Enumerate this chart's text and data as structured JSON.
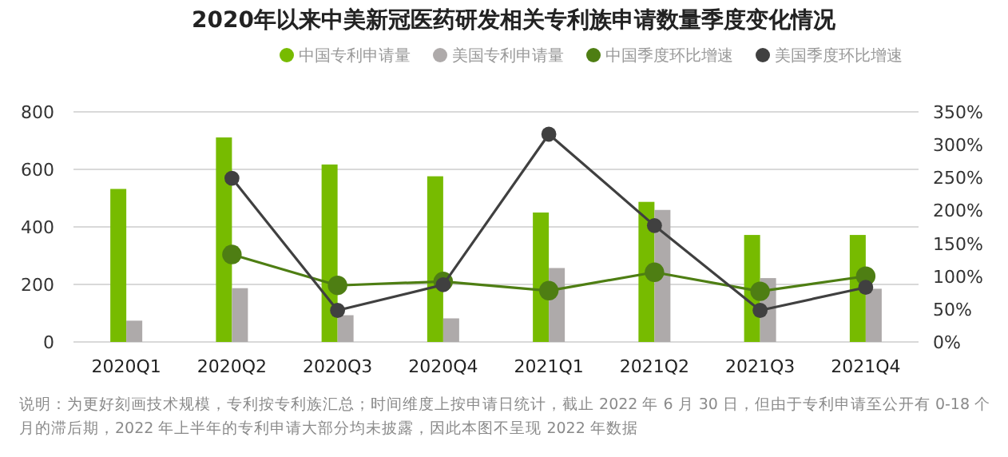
{
  "chart_data": {
    "type": "bar",
    "title": "2020年以来中美新冠医药研发相关专利族申请数量季度变化情况",
    "categories": [
      "2020Q1",
      "2020Q2",
      "2020Q3",
      "2020Q4",
      "2021Q1",
      "2021Q2",
      "2021Q3",
      "2021Q4"
    ],
    "series": [
      {
        "name": "中国专利申请量",
        "color": "#77bb00",
        "values": [
          532,
          711,
          617,
          576,
          450,
          487,
          372,
          372
        ]
      },
      {
        "name": "美国专利申请量",
        "color": "#aeaaaa",
        "values": [
          74,
          187,
          93,
          82,
          257,
          459,
          222,
          185
        ]
      },
      {
        "name": "中国季度环比增速",
        "type": "line",
        "axis": "y2",
        "color": "#4e7e13",
        "marker": "circle",
        "values": [
          null,
          133,
          86,
          92,
          78,
          106,
          77,
          100
        ]
      },
      {
        "name": "美国季度环比增速",
        "type": "line",
        "axis": "y2",
        "color": "#404040",
        "marker": "circle",
        "values": [
          null,
          249,
          48,
          87,
          316,
          177,
          48,
          83
        ]
      }
    ],
    "ylim": [
      0,
      800
    ],
    "yticks": [
      0,
      200,
      400,
      600,
      800
    ],
    "y2lim": [
      0,
      350
    ],
    "y2ticks": [
      {
        "value": 0,
        "label": "0%"
      },
      {
        "value": 50,
        "label": "50%"
      },
      {
        "value": 100,
        "label": "100%"
      },
      {
        "value": 150,
        "label": "150%"
      },
      {
        "value": 200,
        "label": "200%"
      },
      {
        "value": 250,
        "label": "250%"
      },
      {
        "value": 300,
        "label": "300%"
      },
      {
        "value": 350,
        "label": "350%"
      }
    ],
    "grid": "y",
    "legend": "top",
    "annotations": [
      "说明：为更好刻画技术规模，专利按专利族汇总；时间维度上按申请日统计，截止 2022 年 6 月 30 日，但由于专利申请至公开有 0-18 个月的滞后期，2022 年上半年的专利申请大部分均未披露，因此本图不呈现 2022 年数据"
    ]
  }
}
